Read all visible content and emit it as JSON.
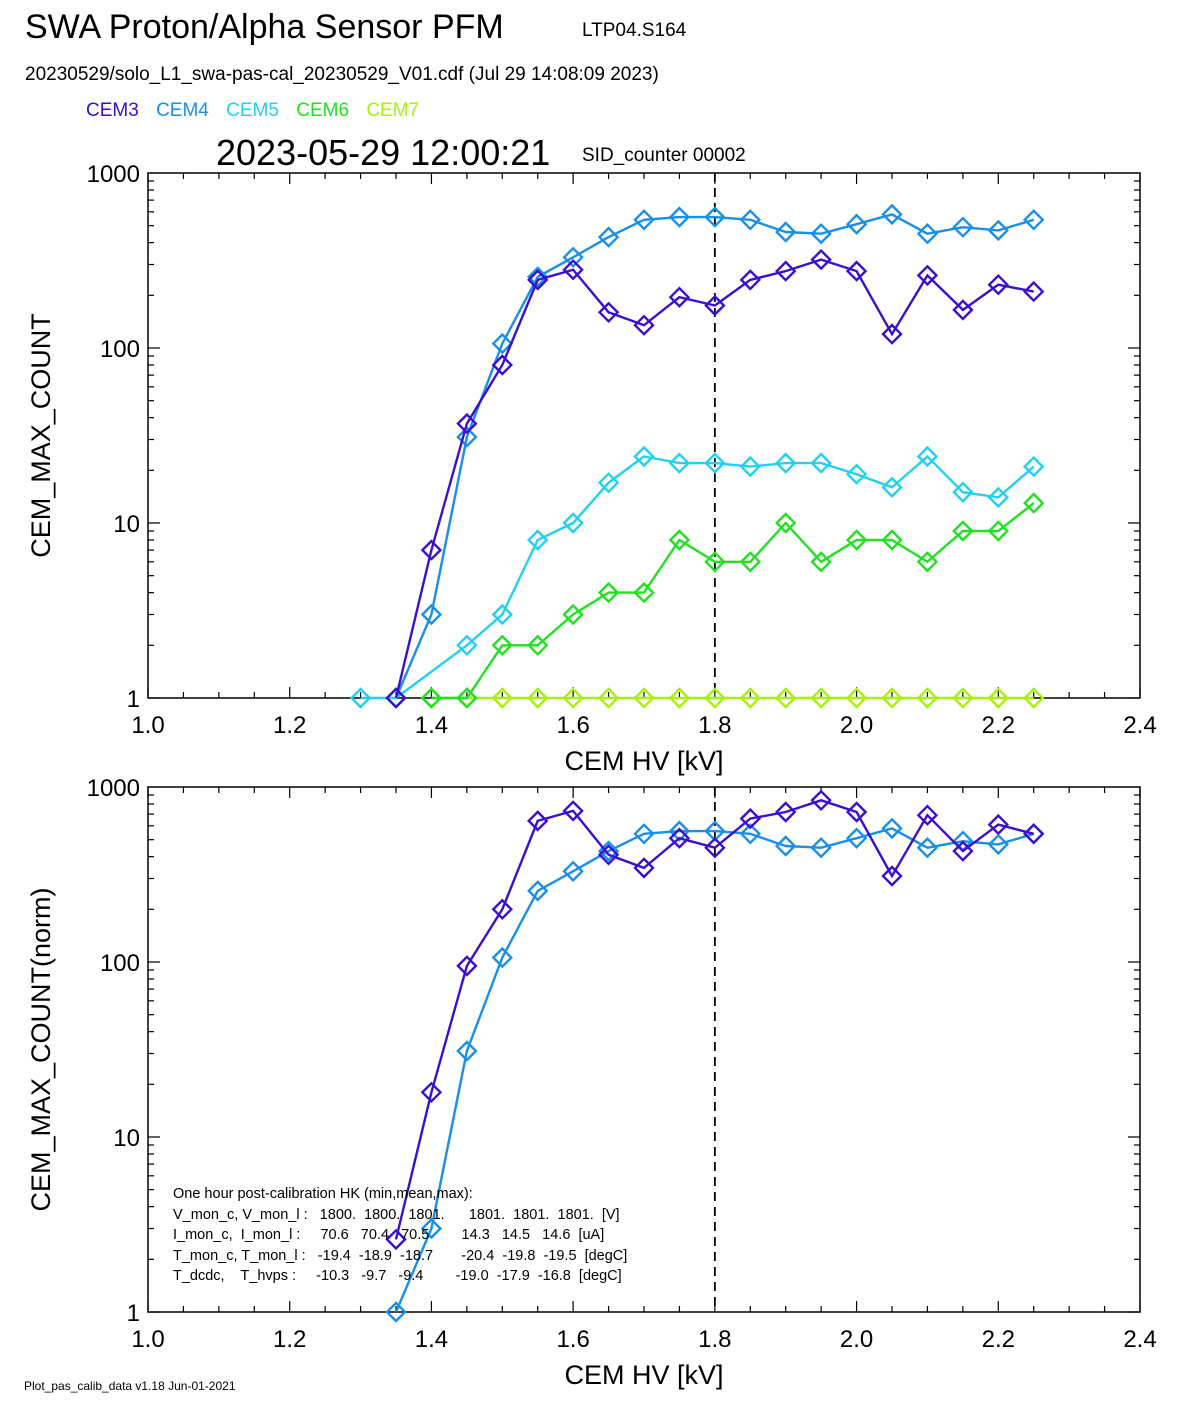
{
  "header": {
    "title": "SWA Proton/Alpha Sensor PFM",
    "subtitle": "LTP04.S164",
    "file_line": "20230529/solo_L1_swa-pas-cal_20230529_V01.cdf  (Jul 29 14:08:09 2023)",
    "timestamp": "2023-05-29 12:00:21",
    "counter": "SID_counter 00002"
  },
  "legend": [
    {
      "label": "CEM3",
      "color": "#3a0fd0"
    },
    {
      "label": "CEM4",
      "color": "#1a8fe8"
    },
    {
      "label": "CEM5",
      "color": "#22d0f0"
    },
    {
      "label": "CEM6",
      "color": "#22e022"
    },
    {
      "label": "CEM7",
      "color": "#a8f010"
    }
  ],
  "footer": "Plot_pas_calib_data v1.18 Jun-01-2021",
  "hk_box": {
    "lines": [
      "One hour post-calibration HK (min,mean,max):",
      "V_mon_c, V_mon_l :   1800.  1800.  1801.      1801.  1801.  1801.  [V]",
      "I_mon_c,  I_mon_l :     70.6   70.4   70.5        14.3   14.5   14.6  [uA]",
      "T_mon_c, T_mon_l :   -19.4  -18.9  -18.7       -20.4  -19.8  -19.5  [degC]",
      "T_dcdc,    T_hvps :     -10.3   -9.7   -9.4        -19.0  -17.9  -16.8  [degC]"
    ]
  },
  "chart_data": [
    {
      "type": "line",
      "xlabel": "CEM HV [kV]",
      "ylabel": "CEM_MAX_COUNT",
      "xlim": [
        1.0,
        2.4
      ],
      "ylim": [
        1,
        1000
      ],
      "yscale": "log",
      "xticks": [
        "1.0",
        "1.2",
        "1.4",
        "1.6",
        "1.8",
        "2.0",
        "2.2",
        "2.4"
      ],
      "yticks": [
        "1",
        "10",
        "100",
        "1000"
      ],
      "marker": "diamond",
      "vline": 1.8,
      "x": [
        1.3,
        1.35,
        1.4,
        1.45,
        1.5,
        1.55,
        1.6,
        1.65,
        1.7,
        1.75,
        1.8,
        1.85,
        1.9,
        1.95,
        2.0,
        2.05,
        2.1,
        2.15,
        2.2,
        2.25
      ],
      "series": [
        {
          "name": "CEM7",
          "color": "#a8f010",
          "values": [
            null,
            null,
            1,
            1,
            1,
            1,
            1,
            1,
            1,
            1,
            1,
            1,
            1,
            1,
            1,
            1,
            1,
            1,
            1,
            1
          ]
        },
        {
          "name": "CEM6",
          "color": "#22e022",
          "values": [
            null,
            null,
            1,
            1,
            2,
            2,
            3,
            4,
            4,
            8,
            6,
            6,
            10,
            6,
            8,
            8,
            6,
            9,
            9,
            13
          ]
        },
        {
          "name": "CEM5",
          "color": "#22d0f0",
          "values": [
            1,
            1,
            null,
            2,
            3,
            8,
            10,
            17,
            24,
            22,
            22,
            21,
            22,
            22,
            19,
            16,
            24,
            15,
            14,
            21
          ]
        },
        {
          "name": "CEM4",
          "color": "#1a8fe8",
          "values": [
            null,
            1,
            3,
            31,
            106,
            255,
            330,
            430,
            540,
            560,
            560,
            540,
            460,
            450,
            510,
            580,
            450,
            490,
            470,
            540
          ]
        },
        {
          "name": "CEM3",
          "color": "#3a0fd0",
          "values": [
            null,
            1,
            7,
            37,
            80,
            245,
            280,
            160,
            135,
            195,
            175,
            245,
            275,
            320,
            275,
            120,
            260,
            165,
            230,
            210
          ]
        }
      ]
    },
    {
      "type": "line",
      "xlabel": "CEM HV [kV]",
      "ylabel": "CEM_MAX_COUNT(norm)",
      "xlim": [
        1.0,
        2.4
      ],
      "ylim": [
        1,
        1000
      ],
      "yscale": "log",
      "xticks": [
        "1.0",
        "1.2",
        "1.4",
        "1.6",
        "1.8",
        "2.0",
        "2.2",
        "2.4"
      ],
      "yticks": [
        "1",
        "10",
        "100",
        "1000"
      ],
      "marker": "diamond",
      "vline": 1.8,
      "x": [
        1.35,
        1.4,
        1.45,
        1.5,
        1.55,
        1.6,
        1.65,
        1.7,
        1.75,
        1.8,
        1.85,
        1.9,
        1.95,
        2.0,
        2.05,
        2.1,
        2.15,
        2.2,
        2.25
      ],
      "series": [
        {
          "name": "CEM4",
          "color": "#1a8fe8",
          "values": [
            1,
            3,
            31,
            106,
            255,
            330,
            430,
            540,
            560,
            560,
            540,
            460,
            450,
            510,
            580,
            450,
            490,
            470,
            540
          ]
        },
        {
          "name": "CEM3",
          "color": "#3a0fd0",
          "values": [
            2.6,
            18,
            95,
            200,
            640,
            730,
            410,
            345,
            510,
            450,
            660,
            720,
            840,
            720,
            310,
            690,
            430,
            610,
            540
          ]
        }
      ]
    }
  ]
}
